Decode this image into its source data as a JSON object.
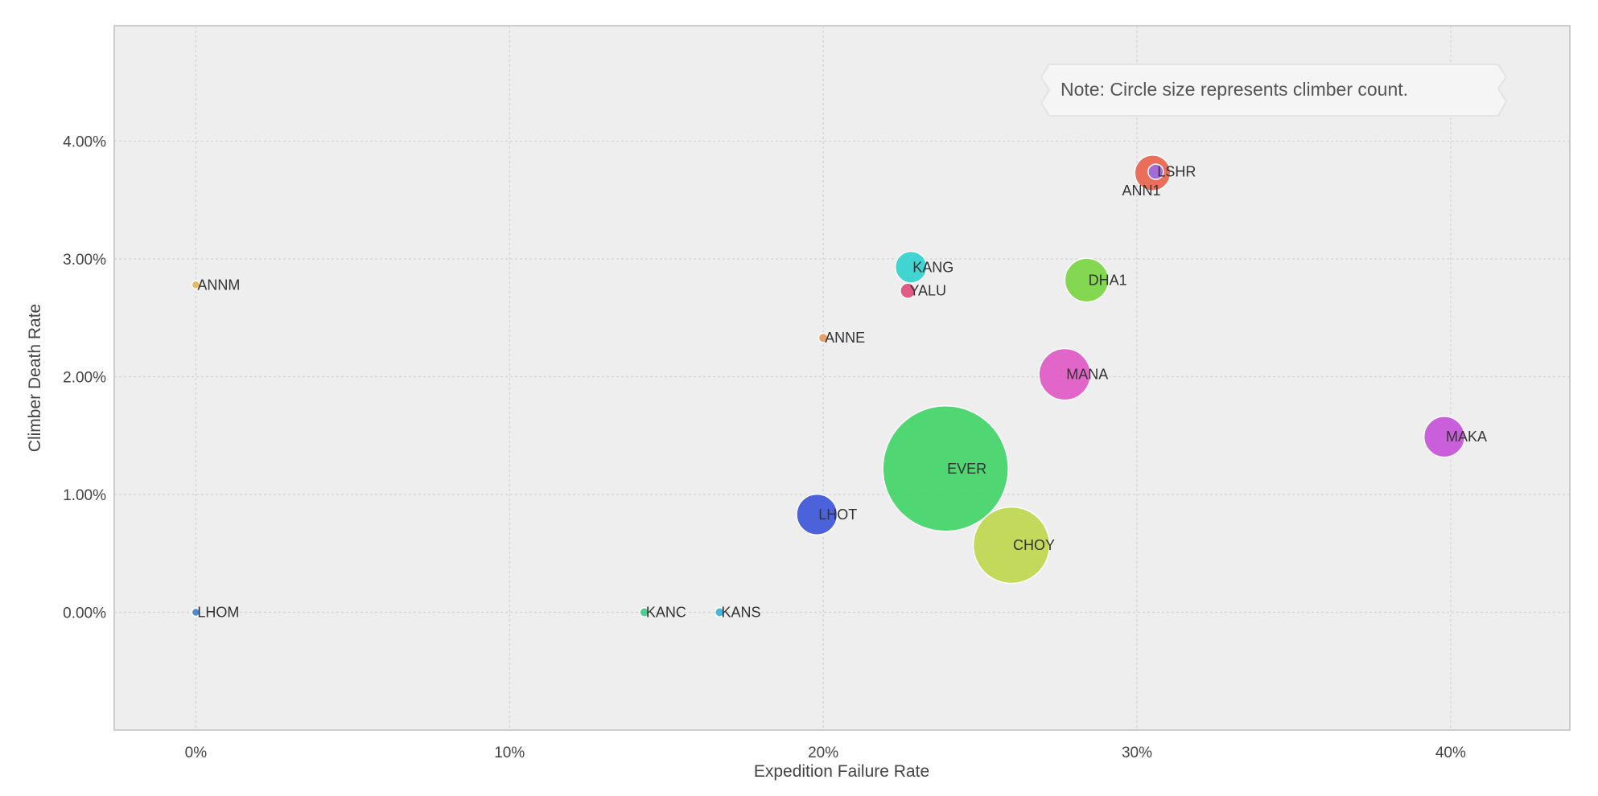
{
  "chart_data": {
    "type": "scatter",
    "xlabel": "Expedition Failure Rate",
    "ylabel": "Climber Death Rate",
    "xlim": [
      -0.026,
      0.438
    ],
    "ylim": [
      -0.01,
      0.0498
    ],
    "x_ticks": [
      0,
      0.1,
      0.2,
      0.3,
      0.4
    ],
    "x_tick_labels": [
      "0%",
      "10%",
      "20%",
      "30%",
      "40%"
    ],
    "y_ticks": [
      0,
      0.01,
      0.02,
      0.03,
      0.04
    ],
    "y_tick_labels": [
      "0.00%",
      "1.00%",
      "2.00%",
      "3.00%",
      "4.00%"
    ],
    "grid": true,
    "annotation": "Note: Circle size represents climber count.",
    "points": [
      {
        "label": "ANNM",
        "x": 0.0,
        "y": 0.0278,
        "climbers": 30,
        "color": "#e8b44a"
      },
      {
        "label": "LHOM",
        "x": 0.0,
        "y": 0.0,
        "climbers": 30,
        "color": "#3b7fd4"
      },
      {
        "label": "KANC",
        "x": 0.143,
        "y": 0.0,
        "climbers": 40,
        "color": "#3fc98a"
      },
      {
        "label": "KANS",
        "x": 0.167,
        "y": 0.0,
        "climbers": 40,
        "color": "#35b3d8"
      },
      {
        "label": "ANNE",
        "x": 0.2,
        "y": 0.0233,
        "climbers": 40,
        "color": "#e8965a"
      },
      {
        "label": "LHOT",
        "x": 0.198,
        "y": 0.0083,
        "climbers": 780,
        "color": "#3a52d8"
      },
      {
        "label": "KANG",
        "x": 0.228,
        "y": 0.0293,
        "climbers": 470,
        "color": "#2fd0cc"
      },
      {
        "label": "YALU",
        "x": 0.227,
        "y": 0.0273,
        "climbers": 110,
        "color": "#e04a7a"
      },
      {
        "label": "EVER",
        "x": 0.239,
        "y": 0.0122,
        "climbers": 7400,
        "color": "#3ed364"
      },
      {
        "label": "CHOY",
        "x": 0.26,
        "y": 0.0057,
        "climbers": 2750,
        "color": "#bcd64a"
      },
      {
        "label": "MANA",
        "x": 0.277,
        "y": 0.0202,
        "climbers": 1250,
        "color": "#e055c4"
      },
      {
        "label": "DHA1",
        "x": 0.284,
        "y": 0.0282,
        "climbers": 900,
        "color": "#78d43e"
      },
      {
        "label": "ANN1",
        "x": 0.305,
        "y": 0.0373,
        "climbers": 600,
        "color": "#e8604a"
      },
      {
        "label": "LSHR",
        "x": 0.306,
        "y": 0.0374,
        "climbers": 110,
        "color": "#9b6ae0"
      },
      {
        "label": "MAKA",
        "x": 0.398,
        "y": 0.0149,
        "climbers": 780,
        "color": "#c44fd8"
      }
    ]
  }
}
